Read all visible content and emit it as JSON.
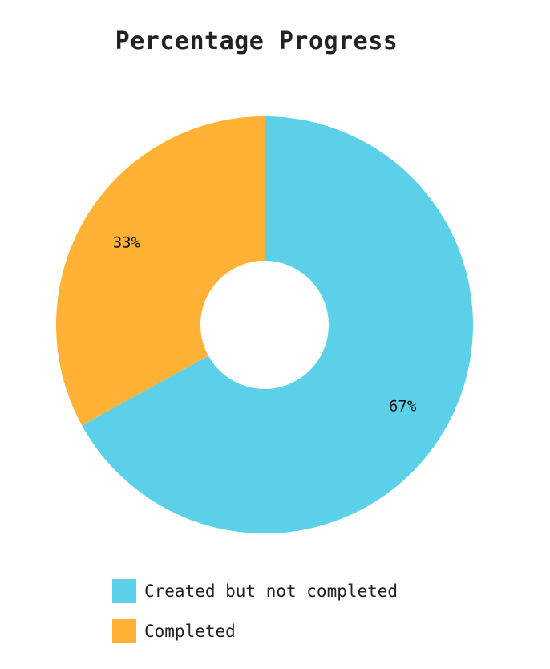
{
  "chart_data": {
    "type": "pie",
    "title": "Percentage Progress",
    "donut": true,
    "categories": [
      "Created but not completed",
      "Completed"
    ],
    "values": [
      67,
      33
    ],
    "data_labels": [
      "67%",
      "33%"
    ],
    "colors": [
      "#5bd0e8",
      "#ffb236"
    ],
    "legend_position": "bottom"
  }
}
